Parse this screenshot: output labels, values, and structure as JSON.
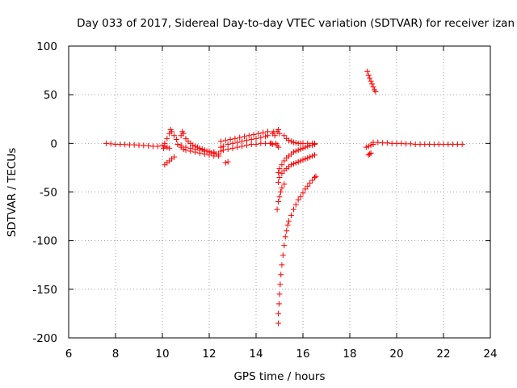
{
  "chart_data": {
    "type": "scatter",
    "title": "Day 033 of 2017, Sidereal Day-to-day VTEC variation (SDTVAR) for receiver izan",
    "xlabel": "GPS time / hours",
    "ylabel": "SDTVAR / TECUs",
    "xlim": [
      6,
      24
    ],
    "ylim": [
      -200,
      100
    ],
    "xticks": [
      "6",
      "8",
      "10",
      "12",
      "14",
      "16",
      "18",
      "20",
      "22",
      "24"
    ],
    "yticks": [
      "100",
      "50",
      "0",
      "-50",
      "-100",
      "-150",
      "-200"
    ],
    "grid": true,
    "marker": "+",
    "color": "#ff0000",
    "series": [
      {
        "points": [
          [
            7.6,
            0
          ],
          [
            7.8,
            -0.5
          ],
          [
            8.0,
            -1
          ],
          [
            8.2,
            -1
          ],
          [
            8.4,
            -1.2
          ],
          [
            8.6,
            -1.5
          ],
          [
            8.8,
            -1.5
          ],
          [
            9.0,
            -2
          ],
          [
            9.2,
            -2.2
          ],
          [
            9.4,
            -2.5
          ],
          [
            9.6,
            -3
          ],
          [
            9.8,
            -3
          ],
          [
            10.0,
            -2
          ],
          [
            10.1,
            0
          ],
          [
            10.2,
            5
          ],
          [
            10.3,
            10
          ],
          [
            10.35,
            14
          ],
          [
            10.4,
            12
          ],
          [
            10.5,
            8
          ],
          [
            10.6,
            4
          ],
          [
            10.65,
            -1
          ],
          [
            10.05,
            -5
          ],
          [
            10.1,
            -3
          ],
          [
            10.2,
            -4
          ],
          [
            10.3,
            -5
          ],
          [
            10.1,
            -22
          ],
          [
            10.2,
            -20
          ],
          [
            10.3,
            -18
          ],
          [
            10.4,
            -16
          ],
          [
            10.5,
            -14
          ],
          [
            10.8,
            8
          ],
          [
            10.85,
            12
          ],
          [
            10.9,
            10
          ],
          [
            11.0,
            5
          ],
          [
            11.1,
            2
          ],
          [
            11.2,
            0
          ],
          [
            11.3,
            -2
          ],
          [
            11.4,
            -3
          ],
          [
            11.5,
            -4
          ],
          [
            11.6,
            -5
          ],
          [
            11.7,
            -6
          ],
          [
            11.8,
            -7
          ],
          [
            11.9,
            -8
          ],
          [
            12.0,
            -9
          ],
          [
            12.1,
            -10
          ],
          [
            12.2,
            -10
          ],
          [
            12.3,
            -11
          ],
          [
            12.4,
            -11
          ],
          [
            10.8,
            -4
          ],
          [
            10.9,
            -6
          ],
          [
            11.0,
            -7
          ],
          [
            11.2,
            -8
          ],
          [
            11.4,
            -9
          ],
          [
            11.6,
            -10
          ],
          [
            11.8,
            -11
          ],
          [
            12.0,
            -12
          ],
          [
            12.2,
            -13
          ],
          [
            12.4,
            -13
          ],
          [
            10.8,
            -2
          ],
          [
            11.0,
            -4
          ],
          [
            11.2,
            -5
          ],
          [
            11.4,
            -6
          ],
          [
            11.6,
            -7
          ],
          [
            11.8,
            -8
          ],
          [
            12.0,
            -8
          ],
          [
            12.2,
            -9
          ],
          [
            12.7,
            -20
          ],
          [
            12.8,
            -19
          ],
          [
            12.5,
            -4
          ],
          [
            12.6,
            -3
          ],
          [
            12.8,
            -1
          ],
          [
            13.0,
            0
          ],
          [
            13.2,
            1
          ],
          [
            13.4,
            2
          ],
          [
            13.6,
            3
          ],
          [
            13.8,
            4
          ],
          [
            14.0,
            5
          ],
          [
            14.2,
            6
          ],
          [
            14.4,
            7
          ],
          [
            14.5,
            8
          ],
          [
            12.5,
            2
          ],
          [
            12.7,
            3
          ],
          [
            12.9,
            4
          ],
          [
            13.1,
            5
          ],
          [
            13.3,
            6
          ],
          [
            13.5,
            7
          ],
          [
            13.7,
            8
          ],
          [
            13.9,
            9
          ],
          [
            14.1,
            10
          ],
          [
            14.3,
            11
          ],
          [
            14.5,
            12
          ],
          [
            12.5,
            -8
          ],
          [
            12.6,
            -7
          ],
          [
            12.8,
            -6
          ],
          [
            13.0,
            -5
          ],
          [
            13.2,
            -4
          ],
          [
            13.4,
            -3
          ],
          [
            13.6,
            -2
          ],
          [
            13.8,
            -1
          ],
          [
            14.0,
            -1
          ],
          [
            14.2,
            0
          ],
          [
            14.4,
            0
          ],
          [
            14.6,
            0
          ],
          [
            14.7,
            10
          ],
          [
            14.75,
            12
          ],
          [
            14.8,
            8
          ],
          [
            14.65,
            0
          ],
          [
            14.7,
            -1
          ],
          [
            14.9,
            12
          ],
          [
            14.95,
            14
          ],
          [
            15.0,
            10
          ],
          [
            14.85,
            0
          ],
          [
            14.9,
            -2
          ],
          [
            14.95,
            -4
          ],
          [
            15.2,
            8
          ],
          [
            15.3,
            5
          ],
          [
            15.4,
            3
          ],
          [
            15.5,
            2
          ],
          [
            15.6,
            1
          ],
          [
            15.7,
            0.5
          ],
          [
            15.8,
            0
          ],
          [
            15.9,
            0
          ],
          [
            16.0,
            0
          ],
          [
            16.2,
            0
          ],
          [
            16.4,
            0
          ],
          [
            16.5,
            0
          ],
          [
            14.95,
            -30
          ],
          [
            15.0,
            -26
          ],
          [
            15.1,
            -22
          ],
          [
            15.2,
            -18
          ],
          [
            15.3,
            -15
          ],
          [
            15.4,
            -13
          ],
          [
            15.5,
            -11
          ],
          [
            15.6,
            -9
          ],
          [
            15.7,
            -8
          ],
          [
            15.8,
            -7
          ],
          [
            15.9,
            -6
          ],
          [
            16.0,
            -5
          ],
          [
            16.1,
            -4
          ],
          [
            16.2,
            -3
          ],
          [
            16.3,
            -2
          ],
          [
            16.4,
            -2
          ],
          [
            16.5,
            -1
          ],
          [
            14.95,
            -40
          ],
          [
            15.0,
            -35
          ],
          [
            15.1,
            -31
          ],
          [
            15.2,
            -28
          ],
          [
            15.3,
            -26
          ],
          [
            15.4,
            -24
          ],
          [
            15.5,
            -22
          ],
          [
            15.6,
            -21
          ],
          [
            15.7,
            -20
          ],
          [
            15.8,
            -19
          ],
          [
            15.9,
            -18
          ],
          [
            16.0,
            -17
          ],
          [
            16.1,
            -16
          ],
          [
            16.2,
            -15
          ],
          [
            16.3,
            -14
          ],
          [
            16.4,
            -13
          ],
          [
            16.5,
            -12
          ],
          [
            14.9,
            -68
          ],
          [
            14.95,
            -60
          ],
          [
            15.0,
            -55
          ],
          [
            15.05,
            -50
          ],
          [
            15.1,
            -46
          ],
          [
            15.2,
            -42
          ],
          [
            14.95,
            -185
          ],
          [
            14.95,
            -175
          ],
          [
            14.98,
            -165
          ],
          [
            15.0,
            -155
          ],
          [
            15.03,
            -145
          ],
          [
            15.06,
            -135
          ],
          [
            15.1,
            -125
          ],
          [
            15.15,
            -115
          ],
          [
            15.2,
            -105
          ],
          [
            15.25,
            -96
          ],
          [
            15.3,
            -90
          ],
          [
            15.35,
            -84
          ],
          [
            15.4,
            -80
          ],
          [
            15.5,
            -74
          ],
          [
            15.6,
            -68
          ],
          [
            15.7,
            -63
          ],
          [
            15.8,
            -58
          ],
          [
            15.9,
            -55
          ],
          [
            16.0,
            -51
          ],
          [
            16.1,
            -47
          ],
          [
            16.2,
            -44
          ],
          [
            16.3,
            -41
          ],
          [
            16.4,
            -38
          ],
          [
            16.5,
            -35
          ],
          [
            16.55,
            -34
          ],
          [
            18.75,
            74
          ],
          [
            18.8,
            70
          ],
          [
            18.85,
            67
          ],
          [
            18.9,
            64
          ],
          [
            18.95,
            61
          ],
          [
            19.0,
            58
          ],
          [
            19.05,
            55
          ],
          [
            19.1,
            53
          ],
          [
            18.8,
            -12
          ],
          [
            18.85,
            -11
          ],
          [
            18.9,
            -10
          ],
          [
            18.7,
            -4
          ],
          [
            18.8,
            -3
          ],
          [
            18.9,
            -2
          ],
          [
            19.0,
            -1
          ],
          [
            19.0,
            1
          ],
          [
            19.2,
            1
          ],
          [
            19.4,
            0.5
          ],
          [
            19.6,
            0.5
          ],
          [
            19.8,
            0
          ],
          [
            20.0,
            0
          ],
          [
            20.2,
            0
          ],
          [
            20.4,
            -0.5
          ],
          [
            20.6,
            -0.5
          ],
          [
            20.8,
            -1
          ],
          [
            21.0,
            -1
          ],
          [
            21.2,
            -1
          ],
          [
            21.4,
            -1
          ],
          [
            21.6,
            -1
          ],
          [
            21.8,
            -1
          ],
          [
            22.0,
            -1
          ],
          [
            22.2,
            -1
          ],
          [
            22.4,
            -1
          ],
          [
            22.6,
            -1
          ],
          [
            22.8,
            -1
          ]
        ]
      }
    ]
  }
}
